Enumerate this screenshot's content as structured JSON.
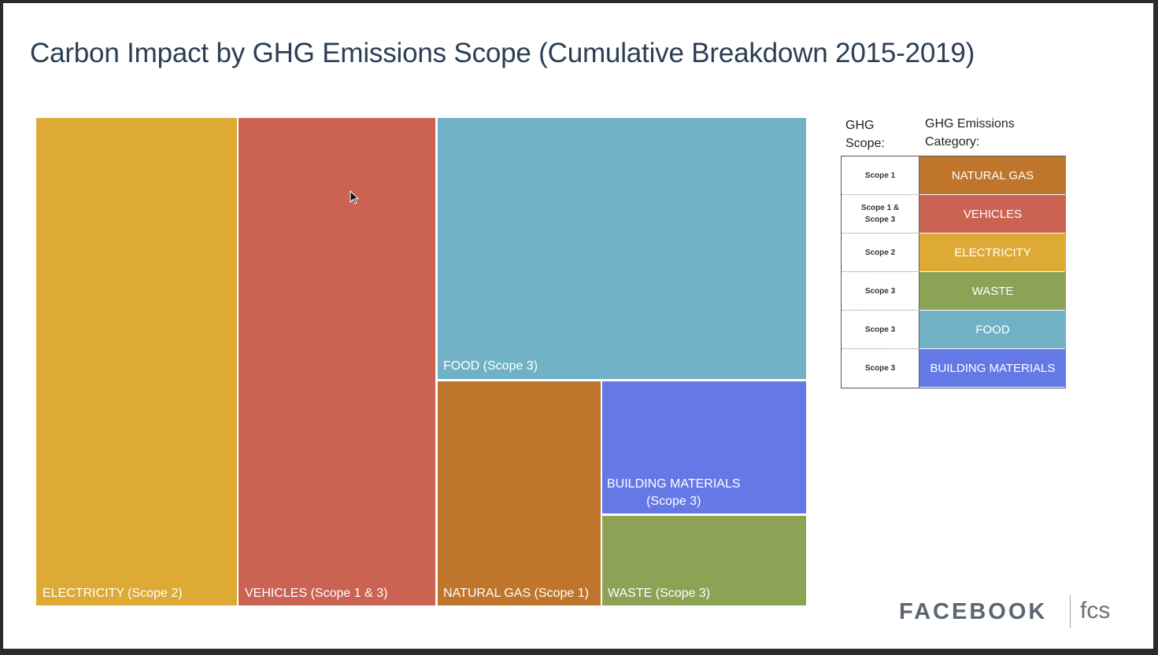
{
  "slide": {
    "title": "Carbon Impact by GHG Emissions Scope (Cumulative Breakdown 2015-2019)"
  },
  "chart_data": {
    "type": "treemap",
    "title": "Carbon Impact by GHG Emissions Scope (Cumulative Breakdown 2015-2019)",
    "tiles": [
      {
        "id": "electricity",
        "label": "ELECTRICITY (Scope 2)",
        "value": 26.0,
        "color": "#DEAA36"
      },
      {
        "id": "vehicles",
        "label": "VEHICLES (Scope 1 & 3)",
        "value": 25.8,
        "color": "#CB6353"
      },
      {
        "id": "food",
        "label": "FOOD (Scope 3)",
        "value": 25.6,
        "color": "#71B1C5"
      },
      {
        "id": "natural_gas",
        "label": "NATURAL GAS (Scope 1)",
        "value": 11.0,
        "color": "#BF752B"
      },
      {
        "id": "building_materials",
        "label_line1": "BUILDING MATERIALS",
        "label_line2": "(Scope 3)",
        "value": 7.1,
        "color": "#6479E5"
      },
      {
        "id": "waste",
        "label": "WASTE   (Scope 3)",
        "value": 4.9,
        "color": "#8CA356"
      }
    ],
    "value_unit": "approximate share of total area (%)"
  },
  "legend": {
    "scope_header_line1": "GHG",
    "scope_header_line2": "Scope:",
    "category_header_line1": "GHG Emissions",
    "category_header_line2": "Category:",
    "rows": [
      {
        "scope_line1": "Scope 1",
        "scope_line2": "",
        "category": "NATURAL GAS",
        "color": "#BF752B"
      },
      {
        "scope_line1": "Scope 1 &",
        "scope_line2": "Scope 3",
        "category": "VEHICLES",
        "color": "#CB6353"
      },
      {
        "scope_line1": "Scope 2",
        "scope_line2": "",
        "category": "ELECTRICITY",
        "color": "#DEAA36"
      },
      {
        "scope_line1": "Scope 3",
        "scope_line2": "",
        "category": "WASTE",
        "color": "#8CA356"
      },
      {
        "scope_line1": "Scope 3",
        "scope_line2": "",
        "category": "FOOD",
        "color": "#71B1C5"
      },
      {
        "scope_line1": "Scope 3",
        "scope_line2": "",
        "category": "BUILDING MATERIALS",
        "color": "#6479E5"
      }
    ]
  },
  "branding": {
    "wordmark": "FACEBOOK",
    "sub": "fcs"
  }
}
